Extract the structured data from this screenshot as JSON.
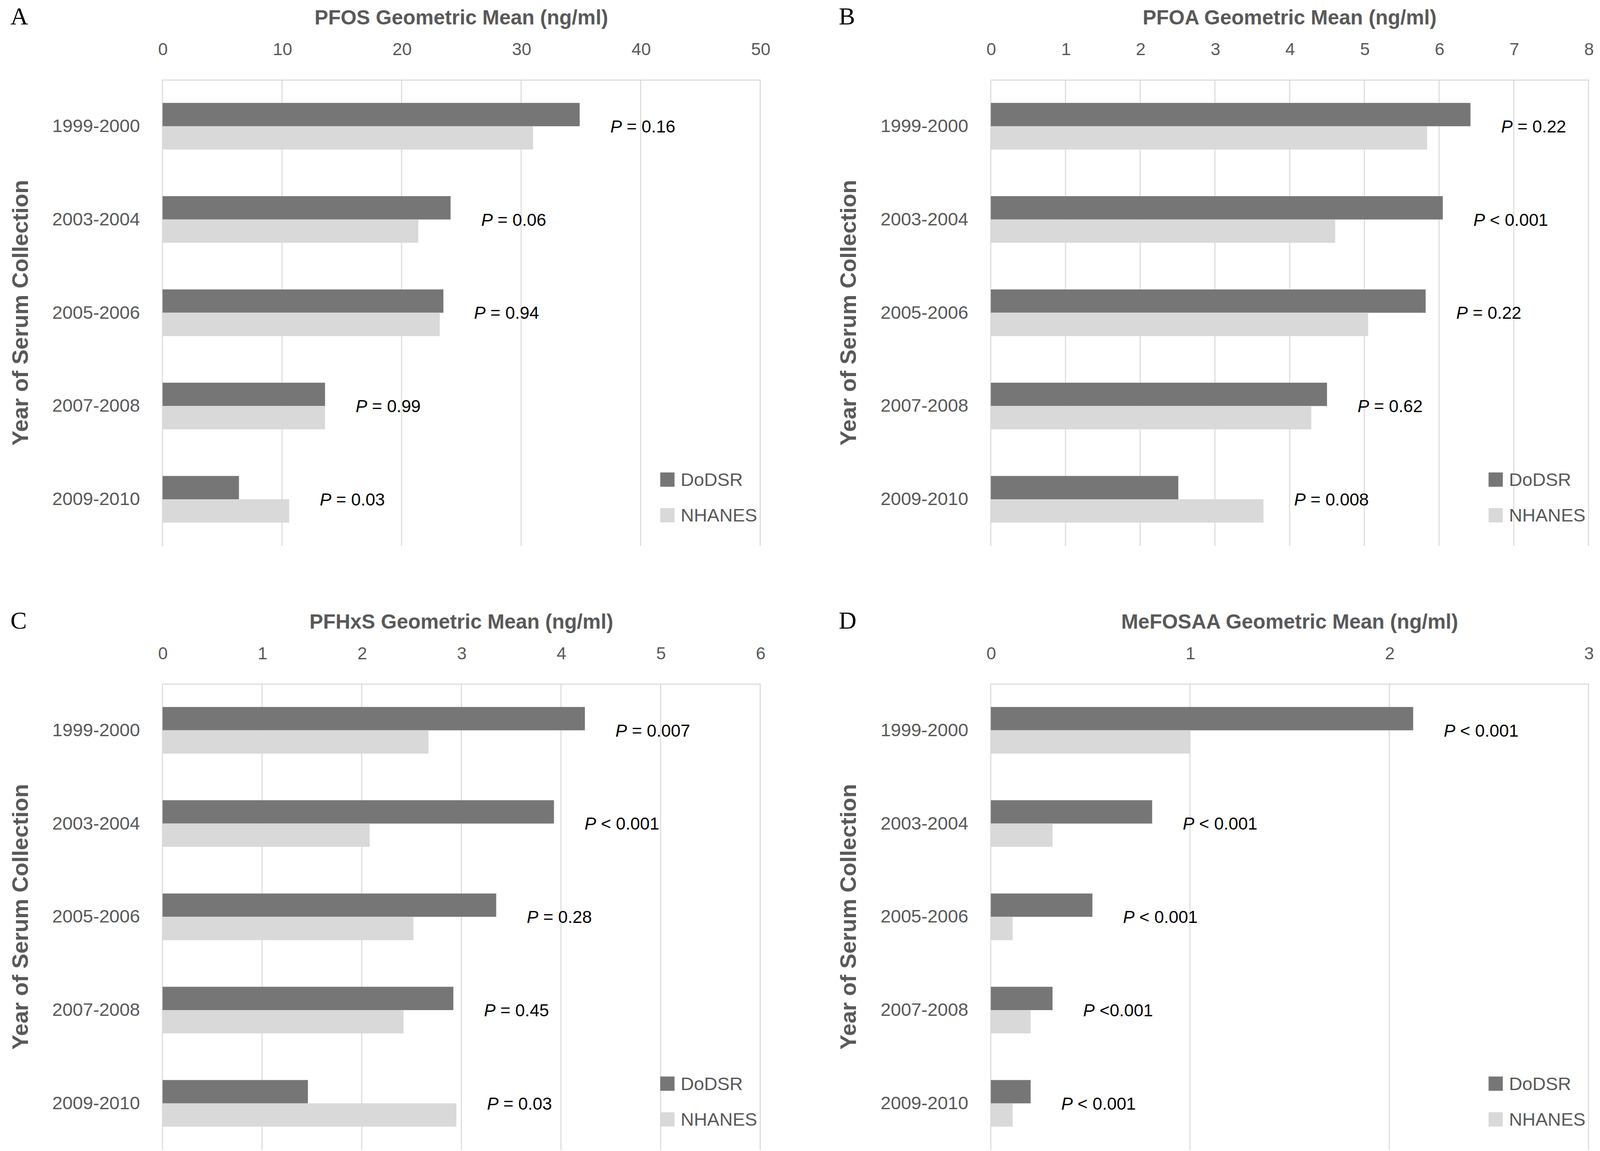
{
  "chart_data": [
    {
      "type": "bar",
      "orientation": "horizontal",
      "panel_label": "A",
      "xlabel": "PFOS Geometric Mean (ng/ml)",
      "ylabel": "Year of Serum Collection",
      "categories": [
        "1999-2000",
        "2003-2004",
        "2005-2006",
        "2007-2008",
        "2009-2010"
      ],
      "series": [
        {
          "name": "DoDSR",
          "color": "#767676",
          "values": [
            34.9,
            24.1,
            23.5,
            13.6,
            6.4
          ]
        },
        {
          "name": "NHANES",
          "color": "#d9d9d9",
          "values": [
            31.0,
            21.4,
            23.2,
            13.6,
            10.6
          ]
        }
      ],
      "annotations": [
        "P = 0.16",
        "P = 0.06",
        "P = 0.94",
        "P = 0.99",
        "P = 0.03"
      ],
      "xlim": [
        0,
        50
      ],
      "xticks": [
        0,
        10,
        20,
        30,
        40,
        50
      ],
      "grid": true,
      "legend": "bottom right"
    },
    {
      "type": "bar",
      "orientation": "horizontal",
      "panel_label": "B",
      "xlabel": "PFOA Geometric Mean (ng/ml)",
      "ylabel": "Year of Serum Collection",
      "categories": [
        "1999-2000",
        "2003-2004",
        "2005-2006",
        "2007-2008",
        "2009-2010"
      ],
      "series": [
        {
          "name": "DoDSR",
          "color": "#767676",
          "values": [
            6.42,
            6.05,
            5.82,
            4.5,
            2.51
          ]
        },
        {
          "name": "NHANES",
          "color": "#d9d9d9",
          "values": [
            5.84,
            4.61,
            5.05,
            4.29,
            3.65
          ]
        }
      ],
      "annotations": [
        "P = 0.22",
        "P < 0.001",
        "P = 0.22",
        "P = 0.62",
        "P = 0.008"
      ],
      "xlim": [
        0,
        8
      ],
      "xticks": [
        0,
        1,
        2,
        3,
        4,
        5,
        6,
        7,
        8
      ],
      "grid": true,
      "legend": "bottom right"
    },
    {
      "type": "bar",
      "orientation": "horizontal",
      "panel_label": "C",
      "xlabel": "PFHxS Geometric Mean (ng/ml)",
      "ylabel": "Year of Serum Collection",
      "categories": [
        "1999-2000",
        "2003-2004",
        "2005-2006",
        "2007-2008",
        "2009-2010"
      ],
      "series": [
        {
          "name": "DoDSR",
          "color": "#767676",
          "values": [
            4.24,
            3.93,
            3.35,
            2.92,
            1.46
          ]
        },
        {
          "name": "NHANES",
          "color": "#d9d9d9",
          "values": [
            2.67,
            2.08,
            2.52,
            2.42,
            2.95
          ]
        }
      ],
      "annotations": [
        "P = 0.007",
        "P < 0.001",
        "P = 0.28",
        "P = 0.45",
        "P = 0.03"
      ],
      "xlim": [
        0,
        6
      ],
      "xticks": [
        0,
        1,
        2,
        3,
        4,
        5,
        6
      ],
      "grid": true,
      "legend": "bottom right"
    },
    {
      "type": "bar",
      "orientation": "horizontal",
      "panel_label": "D",
      "xlabel": "MeFOSAA Geometric Mean (ng/ml)",
      "ylabel": "Year of Serum Collection",
      "categories": [
        "1999-2000",
        "2003-2004",
        "2005-2006",
        "2007-2008",
        "2009-2010"
      ],
      "series": [
        {
          "name": "DoDSR",
          "color": "#767676",
          "values": [
            2.12,
            0.81,
            0.51,
            0.31,
            0.2
          ]
        },
        {
          "name": "NHANES",
          "color": "#d9d9d9",
          "values": [
            1.0,
            0.31,
            0.11,
            0.2,
            0.11
          ]
        }
      ],
      "annotations": [
        "P < 0.001",
        "P < 0.001",
        "P < 0.001",
        "P <0.001",
        "P < 0.001"
      ],
      "xlim": [
        0,
        3
      ],
      "xticks": [
        0,
        1,
        2,
        3
      ],
      "grid": true,
      "legend": "bottom right"
    }
  ]
}
